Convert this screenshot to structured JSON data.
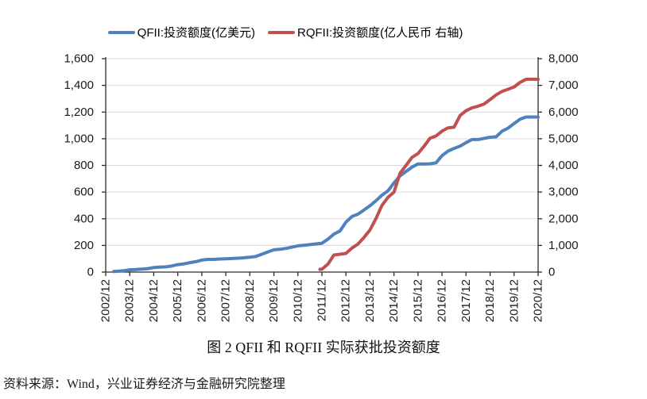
{
  "caption": "图 2 QFII 和 RQFII 实际获批投资额度",
  "source_note": "资料来源：Wind，兴业证券经济与金融研究院整理",
  "chart_data": {
    "type": "line",
    "title": "图 2 QFII 和 RQFII 实际获批投资额度",
    "grid": true,
    "legend_position": "top",
    "colors": {
      "grid": "#d9d9d9",
      "axis": "#2b2b2b"
    },
    "x_tick_labels": [
      "2002/12",
      "2003/12",
      "2004/12",
      "2005/12",
      "2006/12",
      "2007/12",
      "2008/12",
      "2009/12",
      "2010/12",
      "2011/12",
      "2012/12",
      "2013/12",
      "2014/12",
      "2015/12",
      "2016/12",
      "2017/12",
      "2018/12",
      "2019/12",
      "2020/12"
    ],
    "left_axis": {
      "tick_labels": [
        "0",
        "200",
        "400",
        "600",
        "800",
        "1,000",
        "1,200",
        "1,400",
        "1,600"
      ],
      "min": 0,
      "max": 1600
    },
    "right_axis": {
      "tick_labels": [
        "0",
        "1,000",
        "2,000",
        "3,000",
        "4,000",
        "5,000",
        "6,000",
        "7,000",
        "8,000"
      ],
      "min": 0,
      "max": 8000
    },
    "series": [
      {
        "name": "QFII:投资额度(亿美元)",
        "axis": "left",
        "color": "#4F81BD",
        "points": [
          [
            "2003/04",
            4
          ],
          [
            "2003/07",
            8
          ],
          [
            "2003/10",
            12
          ],
          [
            "2003/12",
            17
          ],
          [
            "2004/03",
            19
          ],
          [
            "2004/06",
            22
          ],
          [
            "2004/09",
            26
          ],
          [
            "2004/12",
            34
          ],
          [
            "2005/03",
            37
          ],
          [
            "2005/06",
            39
          ],
          [
            "2005/09",
            46
          ],
          [
            "2005/12",
            56
          ],
          [
            "2006/03",
            61
          ],
          [
            "2006/06",
            71
          ],
          [
            "2006/09",
            78
          ],
          [
            "2006/12",
            90
          ],
          [
            "2007/03",
            95
          ],
          [
            "2007/06",
            95
          ],
          [
            "2007/09",
            98
          ],
          [
            "2007/12",
            100
          ],
          [
            "2008/03",
            102
          ],
          [
            "2008/06",
            104
          ],
          [
            "2008/09",
            107
          ],
          [
            "2008/12",
            111
          ],
          [
            "2009/03",
            117
          ],
          [
            "2009/06",
            134
          ],
          [
            "2009/09",
            151
          ],
          [
            "2009/12",
            167
          ],
          [
            "2010/03",
            171
          ],
          [
            "2010/06",
            177
          ],
          [
            "2010/09",
            187
          ],
          [
            "2010/12",
            197
          ],
          [
            "2011/03",
            201
          ],
          [
            "2011/06",
            206
          ],
          [
            "2011/09",
            211
          ],
          [
            "2011/12",
            216
          ],
          [
            "2012/03",
            247
          ],
          [
            "2012/06",
            285
          ],
          [
            "2012/09",
            308
          ],
          [
            "2012/12",
            374
          ],
          [
            "2013/03",
            417
          ],
          [
            "2013/06",
            434
          ],
          [
            "2013/09",
            465
          ],
          [
            "2013/12",
            497
          ],
          [
            "2014/03",
            535
          ],
          [
            "2014/06",
            577
          ],
          [
            "2014/09",
            609
          ],
          [
            "2014/12",
            669
          ],
          [
            "2015/03",
            721
          ],
          [
            "2015/06",
            755
          ],
          [
            "2015/09",
            787
          ],
          [
            "2015/12",
            811
          ],
          [
            "2016/03",
            810
          ],
          [
            "2016/06",
            812
          ],
          [
            "2016/09",
            819
          ],
          [
            "2016/12",
            873
          ],
          [
            "2017/03",
            907
          ],
          [
            "2017/06",
            927
          ],
          [
            "2017/09",
            944
          ],
          [
            "2017/12",
            971
          ],
          [
            "2018/03",
            994
          ],
          [
            "2018/06",
            994
          ],
          [
            "2018/09",
            1003
          ],
          [
            "2018/12",
            1011
          ],
          [
            "2019/03",
            1014
          ],
          [
            "2019/06",
            1057
          ],
          [
            "2019/09",
            1079
          ],
          [
            "2019/12",
            1114
          ],
          [
            "2020/03",
            1146
          ],
          [
            "2020/06",
            1163
          ],
          [
            "2020/09",
            1163
          ],
          [
            "2020/12",
            1163
          ]
        ]
      },
      {
        "name": "RQFII:投资额度(亿人民币 右轴)",
        "axis": "right",
        "color": "#C0504D",
        "points": [
          [
            "2011/11",
            100
          ],
          [
            "2011/12",
            107
          ],
          [
            "2012/03",
            300
          ],
          [
            "2012/06",
            640
          ],
          [
            "2012/09",
            670
          ],
          [
            "2012/12",
            700
          ],
          [
            "2013/03",
            900
          ],
          [
            "2013/06",
            1049
          ],
          [
            "2013/09",
            1298
          ],
          [
            "2013/12",
            1575
          ],
          [
            "2014/03",
            2005
          ],
          [
            "2014/06",
            2503
          ],
          [
            "2014/09",
            2801
          ],
          [
            "2014/12",
            2997
          ],
          [
            "2015/03",
            3700
          ],
          [
            "2015/06",
            4000
          ],
          [
            "2015/09",
            4300
          ],
          [
            "2015/12",
            4443
          ],
          [
            "2016/03",
            4713
          ],
          [
            "2016/06",
            5017
          ],
          [
            "2016/09",
            5103
          ],
          [
            "2016/12",
            5284
          ],
          [
            "2017/03",
            5410
          ],
          [
            "2017/06",
            5431
          ],
          [
            "2017/09",
            5867
          ],
          [
            "2017/12",
            6050
          ],
          [
            "2018/03",
            6158
          ],
          [
            "2018/06",
            6220
          ],
          [
            "2018/09",
            6301
          ],
          [
            "2018/12",
            6467
          ],
          [
            "2019/03",
            6640
          ],
          [
            "2019/06",
            6776
          ],
          [
            "2019/09",
            6855
          ],
          [
            "2019/12",
            6941
          ],
          [
            "2020/03",
            7110
          ],
          [
            "2020/06",
            7229
          ],
          [
            "2020/09",
            7229
          ],
          [
            "2020/12",
            7229
          ]
        ]
      }
    ]
  }
}
